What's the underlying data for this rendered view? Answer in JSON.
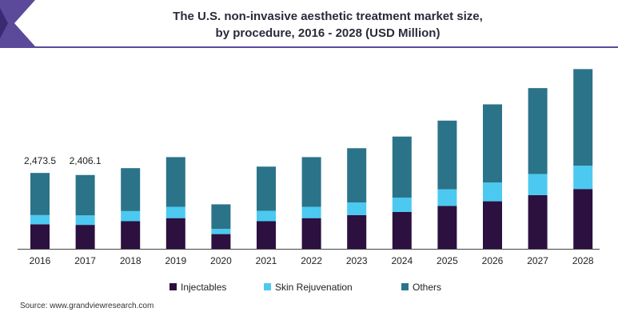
{
  "title_line1": "The U.S. non-invasive aesthetic treatment market size,",
  "title_line2": "by procedure, 2016 - 2028 (USD Million)",
  "source": "Source: www.grandviewresearch.com",
  "colors": {
    "injectables": "#2b1040",
    "skin_rejuvenation": "#4cc9f0",
    "others": "#2b7389",
    "brand": "#5b4a9a"
  },
  "chart_data": {
    "type": "bar",
    "stacked": true,
    "categories": [
      "2016",
      "2017",
      "2018",
      "2019",
      "2020",
      "2021",
      "2022",
      "2023",
      "2024",
      "2025",
      "2026",
      "2027",
      "2028"
    ],
    "series": [
      {
        "name": "Injectables",
        "color": "#2b1040",
        "values": [
          800,
          780,
          900,
          1000,
          480,
          900,
          1000,
          1100,
          1200,
          1400,
          1550,
          1750,
          1950
        ]
      },
      {
        "name": "Skin Rejuvenation",
        "color": "#4cc9f0",
        "values": [
          300,
          310,
          330,
          370,
          170,
          340,
          370,
          410,
          470,
          540,
          610,
          690,
          760
        ]
      },
      {
        "name": "Others",
        "color": "#2b7389",
        "values": [
          1373.5,
          1316.1,
          1400,
          1620,
          800,
          1440,
          1620,
          1770,
          1990,
          2240,
          2550,
          2800,
          3150
        ]
      }
    ],
    "data_labels": [
      {
        "category": "2016",
        "text": "2,473.5"
      },
      {
        "category": "2017",
        "text": "2,406.1"
      }
    ],
    "ylim": [
      0,
      6000
    ],
    "legend": [
      "Injectables",
      "Skin Rejuvenation",
      "Others"
    ],
    "legend_position": "bottom",
    "grid": false,
    "xlabel": "",
    "ylabel": ""
  }
}
